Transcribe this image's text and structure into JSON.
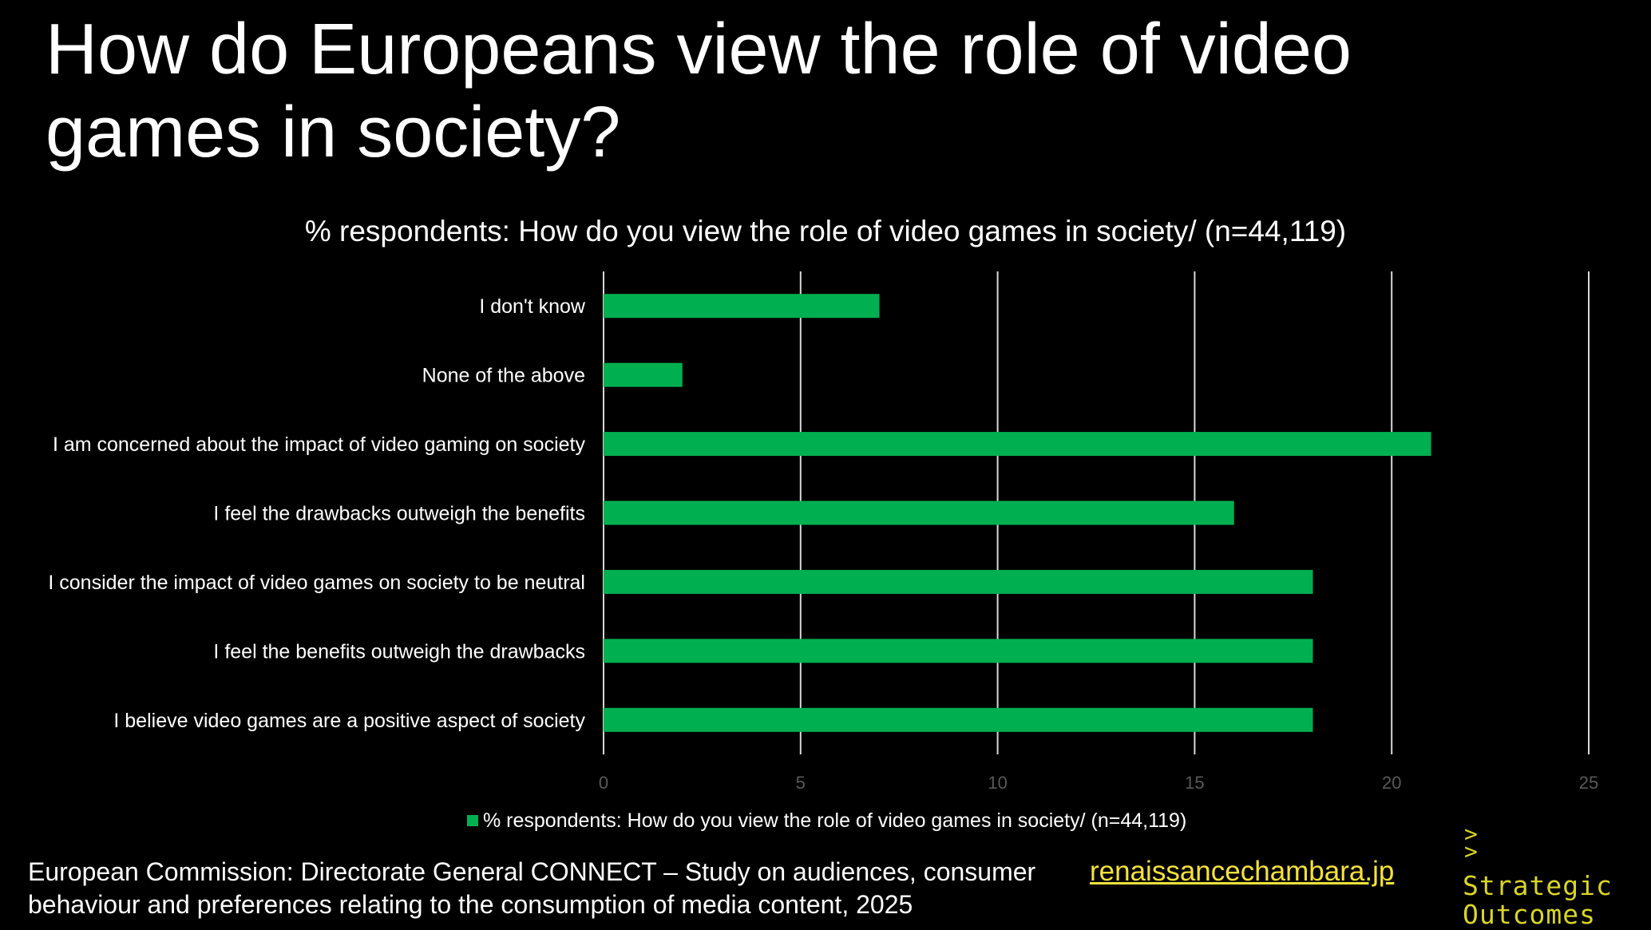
{
  "slide": {
    "title": "How do Europeans view the role of video games in society?",
    "source": "European Commission: Directorate General CONNECT – Study on audiences, consumer behaviour and preferences relating to the consumption of media content, 2025",
    "link": "renaissancechambara.jp",
    "logo": {
      "line1": "Strategic",
      "line2": "Outcomes"
    }
  },
  "colors": {
    "background": "#000000",
    "bar": "#00b050",
    "gridline": "#d9d9d9",
    "text": "#ffffff",
    "logo": "#d9d528",
    "link": "#f5e23c"
  },
  "chart_data": {
    "type": "bar",
    "orientation": "horizontal",
    "title": "% respondents: How do you view the role of video games in society/ (n=44,119)",
    "categories": [
      "I don't know",
      "None of the above",
      "I am concerned about the impact of video gaming on society",
      "I feel the drawbacks outweigh the benefits",
      "I consider the impact of video games on society to be neutral",
      "I feel the benefits outweigh the drawbacks",
      "I believe video games are a positive aspect of society"
    ],
    "series": [
      {
        "name": "% respondents: How do you view the role of video games in society/ (n=44,119)",
        "values": [
          7,
          2,
          21,
          16,
          18,
          18,
          18
        ],
        "color": "#00b050"
      }
    ],
    "xlim": [
      0,
      25
    ],
    "xticks": [
      0,
      5,
      10,
      15,
      20,
      25
    ],
    "grid": true,
    "legend": "bottom"
  }
}
